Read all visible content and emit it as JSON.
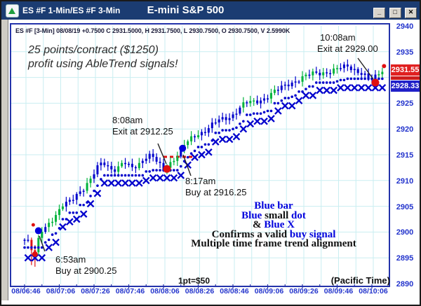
{
  "window": {
    "title_left": "ES #F 1-Min/ES #F 3-Min",
    "title_center": "E-mini S&P 500",
    "buttons": {
      "minimize": "_",
      "maximize": "□",
      "close": "✕"
    }
  },
  "info_line": "ES #F [3-Min] 08/08/19 +0.7500 C 2931.5000, H 2931.7500, L 2930.7500, O 2930.7500, V 2.5990K",
  "annotations": {
    "profit": {
      "line1": "25 points/contract ($1250)",
      "line2": "profit using AbleTrend signals!"
    },
    "exit2": {
      "time": "10:08am",
      "text": "Exit at 2929.00"
    },
    "exit1": {
      "time": "8:08am",
      "text": "Exit at 2912.25"
    },
    "buy2": {
      "time": "8:17am",
      "text": "Buy at 2916.25"
    },
    "buy1": {
      "time": "6:53am",
      "text": "Buy at 2900.25"
    },
    "legend_lines": [
      [
        {
          "t": "Blue bar",
          "c": "blue"
        }
      ],
      [
        {
          "t": "Blue",
          "c": "blue"
        },
        {
          "t": " small ",
          "c": "black"
        },
        {
          "t": "dot",
          "c": "blue"
        }
      ],
      [
        {
          "t": "& ",
          "c": "black"
        },
        {
          "t": "Blue X",
          "c": "blue"
        }
      ],
      [
        {
          "t": "Confirms a valid ",
          "c": "black"
        },
        {
          "t": "buy signal",
          "c": "blue"
        }
      ],
      [
        {
          "t": "Multiple time frame trend alignment",
          "c": "black"
        }
      ]
    ],
    "pt_label": "1pt=$50",
    "timezone": "(Pacific Time)"
  },
  "y_axis": {
    "ticks": [
      2940,
      2935,
      2925,
      2920,
      2915,
      2910,
      2905,
      2900,
      2895,
      2890
    ],
    "tag_red": {
      "text": "2931.55",
      "price": 2931.55
    },
    "tag_blue": {
      "text": "2928.33",
      "price": 2928.33
    }
  },
  "x_axis": {
    "labels": [
      "08/06:46",
      "08/07:06",
      "08/07:26",
      "08/07:46",
      "08/08:06",
      "08/08:26",
      "08/08:46",
      "08/09:06",
      "08/09:26",
      "08/09:46",
      "08/10:06"
    ]
  },
  "chart_data": {
    "type": "line",
    "subtype": "ohlc-bars-with-abletrend-signals",
    "symbol": "ES #F",
    "intervals": "1-Min / 3-Min",
    "title": "E-mini S&P 500",
    "ylim": [
      2890,
      2940
    ],
    "y_grid_step": 5,
    "x_minutes_total": 206,
    "x_start_label": "08/06:46",
    "price_path_anchors": [
      [
        0,
        2898.5
      ],
      [
        2,
        2898.0
      ],
      [
        4,
        2896.5
      ],
      [
        6,
        2895.8
      ],
      [
        8,
        2898.5
      ],
      [
        10,
        2900.5
      ],
      [
        13,
        2901.5
      ],
      [
        16,
        2902.5
      ],
      [
        19,
        2903.5
      ],
      [
        22,
        2905.0
      ],
      [
        26,
        2906.0
      ],
      [
        30,
        2907.5
      ],
      [
        34,
        2908.5
      ],
      [
        38,
        2910.0
      ],
      [
        42,
        2912.5
      ],
      [
        45,
        2913.8
      ],
      [
        49,
        2912.5
      ],
      [
        53,
        2912.0
      ],
      [
        57,
        2913.5
      ],
      [
        61,
        2912.5
      ],
      [
        65,
        2913.0
      ],
      [
        69,
        2914.5
      ],
      [
        73,
        2914.8
      ],
      [
        77,
        2913.2
      ],
      [
        80,
        2912.3
      ],
      [
        83,
        2913.2
      ],
      [
        86,
        2914.2
      ],
      [
        89,
        2915.2
      ],
      [
        92,
        2916.8
      ],
      [
        95,
        2917.8
      ],
      [
        99,
        2919.0
      ],
      [
        103,
        2919.5
      ],
      [
        107,
        2920.5
      ],
      [
        111,
        2921.5
      ],
      [
        115,
        2922.0
      ],
      [
        119,
        2922.5
      ],
      [
        123,
        2923.8
      ],
      [
        127,
        2925.0
      ],
      [
        132,
        2925.2
      ],
      [
        137,
        2925.8
      ],
      [
        142,
        2926.8
      ],
      [
        147,
        2927.8
      ],
      [
        152,
        2928.8
      ],
      [
        157,
        2929.5
      ],
      [
        162,
        2930.2
      ],
      [
        167,
        2930.8
      ],
      [
        172,
        2931.0
      ],
      [
        177,
        2931.2
      ],
      [
        182,
        2931.8
      ],
      [
        186,
        2932.2
      ],
      [
        190,
        2931.6
      ],
      [
        194,
        2930.8
      ],
      [
        198,
        2929.8
      ],
      [
        201,
        2929.6
      ],
      [
        203,
        2930.5
      ],
      [
        206,
        2931.5
      ]
    ],
    "red_bars": [
      2,
      3
    ],
    "signals": [
      {
        "kind": "buy",
        "min": 8,
        "price": 2900.25,
        "label": "Buy at 2900.25",
        "time": "6:53am"
      },
      {
        "kind": "exit",
        "min": 82,
        "price": 2912.25,
        "label": "Exit at 2912.25",
        "time": "8:08am"
      },
      {
        "kind": "buy",
        "min": 91,
        "price": 2916.25,
        "label": "Buy at 2916.25",
        "time": "8:17am"
      },
      {
        "kind": "exit",
        "min": 202,
        "price": 2929.0,
        "label": "Exit at 2929.00",
        "time": "10:08am"
      }
    ],
    "small_red_dots": [
      [
        5,
        2901.4,
        2.5
      ],
      [
        6,
        2895.7,
        4
      ],
      [
        207,
        2932.2,
        3
      ]
    ],
    "stop_line_segment": {
      "from_min": 80,
      "to_min": 99,
      "price": 2914.6
    },
    "dot_trail_start": 2897.0,
    "x_trail_start": 2893.8,
    "colors": {
      "up": "#00b33c",
      "neutral": "#0000cc",
      "down": "#dd1111",
      "dot": "#0000cc",
      "x_mark": "#0000cc",
      "signal_buy": "#0000dd",
      "signal_exit": "#e01010",
      "grid": "#c9eef1",
      "axis_text": "#2233cc"
    }
  }
}
